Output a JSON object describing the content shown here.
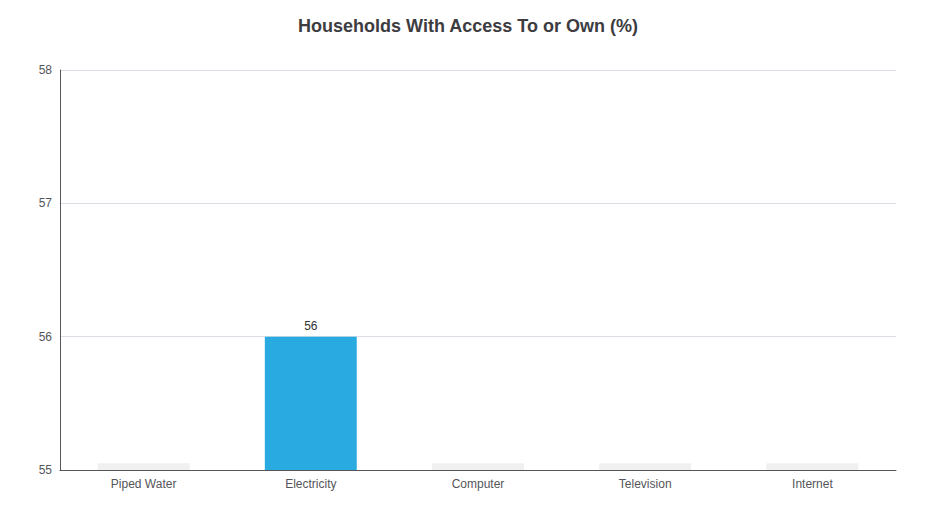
{
  "chart_data": {
    "type": "bar",
    "title": "Households With Access To or Own (%)",
    "categories": [
      "Piped Water",
      "Electricity",
      "Computer",
      "Television",
      "Internet"
    ],
    "values": [
      55.05,
      56,
      55.05,
      55.05,
      55.05
    ],
    "colors": [
      "#f0f0f0",
      "#29abe2",
      "#f0f0f0",
      "#f0f0f0",
      "#f0f0f0"
    ],
    "ylim": [
      55,
      58
    ],
    "yticks": [
      55,
      56,
      57,
      58
    ],
    "grid": true,
    "annotations": [
      {
        "text": "56",
        "x": "Electricity",
        "y": 56
      }
    ]
  }
}
